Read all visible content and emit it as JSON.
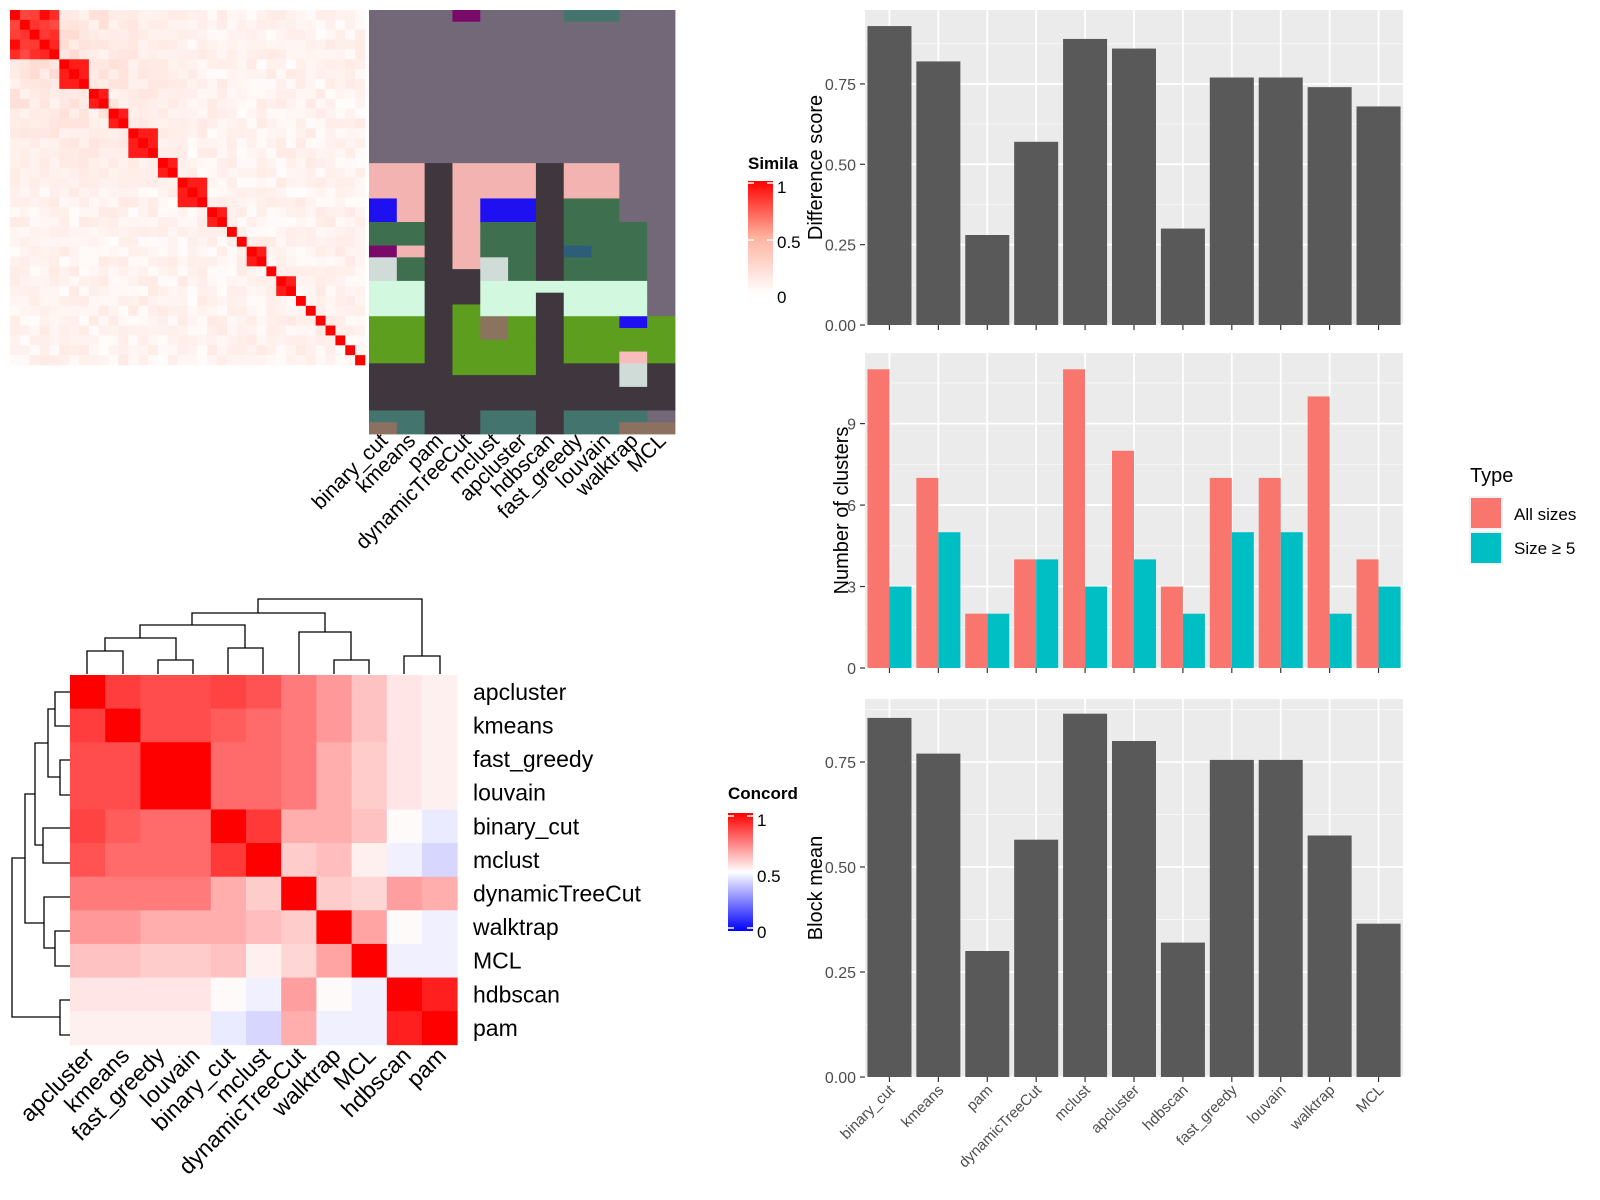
{
  "colors": {
    "panel_bg": "#EBEBEB",
    "bar_dark": "#595959",
    "series_all": "#F8766D",
    "series_size5": "#00BFC4",
    "axis_text": "#4D4D4D"
  },
  "similarity_heatmap": {
    "legend_title": "Simila",
    "legend_ticks": [
      "1",
      "0.5",
      "0"
    ],
    "column_labels": [
      "binary_cut",
      "kmeans",
      "pam",
      "dynamicTreeCut",
      "mclust",
      "apcluster",
      "hdbscan",
      "fast_greedy",
      "louvain",
      "walktrap",
      "MCL"
    ],
    "block_sizes": [
      5,
      3,
      2,
      2,
      3,
      2,
      3,
      2,
      1,
      1,
      2,
      1,
      2,
      1,
      1,
      1,
      1,
      1,
      1,
      1
    ],
    "cluster_palette": [
      "#736878",
      "#3F363E",
      "#F2B3B1",
      "#1E10F0",
      "#3E7050",
      "#7A0A6A",
      "#CFDCD8",
      "#D2F8E0",
      "#5E9E1E",
      "#8A745E",
      "#43756E",
      "#F9BCBD",
      "#8C7060",
      "#2D5E79",
      "#7B6A75",
      "#C9E0D2"
    ]
  },
  "concordance_heatmap": {
    "legend_title": "Concord",
    "legend_ticks": [
      "1",
      "0.5",
      "0"
    ],
    "row_labels": [
      "apcluster",
      "kmeans",
      "fast_greedy",
      "louvain",
      "binary_cut",
      "mclust",
      "dynamicTreeCut",
      "walktrap",
      "MCL",
      "hdbscan",
      "pam"
    ],
    "column_labels": [
      "apcluster",
      "kmeans",
      "fast_greedy",
      "louvain",
      "binary_cut",
      "mclust",
      "dynamicTreeCut",
      "walktrap",
      "MCL",
      "hdbscan",
      "pam"
    ]
  },
  "chart_data": [
    {
      "type": "bar",
      "ylabel": "Difference score",
      "categories": [
        "binary_cut",
        "kmeans",
        "pam",
        "dynamicTreeCut",
        "mclust",
        "apcluster",
        "hdbscan",
        "fast_greedy",
        "louvain",
        "walktrap",
        "MCL"
      ],
      "values": [
        0.93,
        0.82,
        0.28,
        0.57,
        0.89,
        0.86,
        0.3,
        0.77,
        0.77,
        0.74,
        0.68
      ],
      "ylim": [
        0,
        0.98
      ],
      "yticks": [
        0,
        0.25,
        0.5,
        0.75
      ],
      "ytick_labels": [
        "0.00",
        "0.25",
        "0.50",
        "0.75"
      ]
    },
    {
      "type": "bar",
      "ylabel": "Number of clusters",
      "categories": [
        "binary_cut",
        "kmeans",
        "pam",
        "dynamicTreeCut",
        "mclust",
        "apcluster",
        "hdbscan",
        "fast_greedy",
        "louvain",
        "walktrap",
        "MCL"
      ],
      "series": [
        {
          "name": "All sizes",
          "values": [
            11,
            7,
            2,
            4,
            11,
            8,
            3,
            7,
            7,
            10,
            4
          ]
        },
        {
          "name": "Size ≥ 5",
          "values": [
            3,
            5,
            2,
            4,
            3,
            4,
            2,
            5,
            5,
            2,
            3
          ]
        }
      ],
      "ylim": [
        0,
        11.6
      ],
      "yticks": [
        0,
        3,
        6,
        9
      ],
      "ytick_labels": [
        "0",
        "3",
        "6",
        "9"
      ],
      "legend_title": "Type",
      "legend_position": "right"
    },
    {
      "type": "bar",
      "ylabel": "Block mean",
      "categories": [
        "binary_cut",
        "kmeans",
        "pam",
        "dynamicTreeCut",
        "mclust",
        "apcluster",
        "hdbscan",
        "fast_greedy",
        "louvain",
        "walktrap",
        "MCL"
      ],
      "values": [
        0.855,
        0.77,
        0.3,
        0.565,
        0.865,
        0.8,
        0.32,
        0.755,
        0.755,
        0.575,
        0.365
      ],
      "ylim": [
        0,
        0.9
      ],
      "yticks": [
        0,
        0.25,
        0.5,
        0.75
      ],
      "ytick_labels": [
        "0.00",
        "0.25",
        "0.50",
        "0.75"
      ]
    }
  ]
}
